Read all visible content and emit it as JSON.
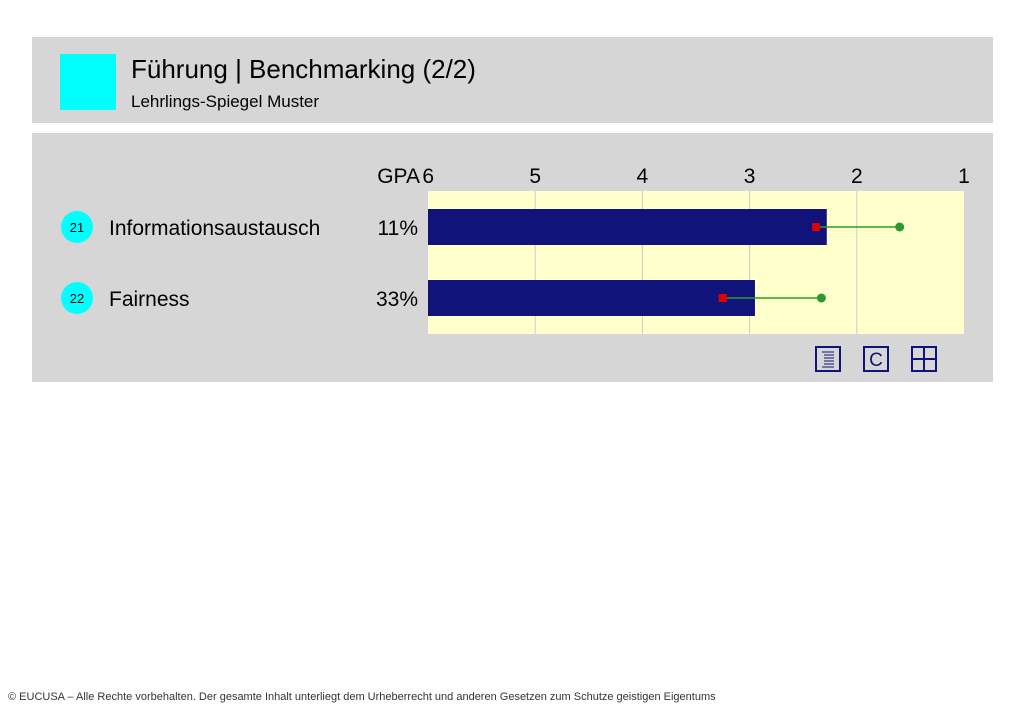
{
  "header": {
    "title": "Führung | Benchmarking (2/2)",
    "subtitle": "Lehrlings-Spiegel Muster",
    "accent_color": "#00ffff"
  },
  "chart_data": {
    "type": "bar",
    "orientation": "horizontal",
    "axis": {
      "prefix": "GPA",
      "ticks": [
        "6",
        "5",
        "4",
        "3",
        "2",
        "1"
      ],
      "range": [
        6,
        1
      ],
      "reversed": true
    },
    "grid": true,
    "plot_background": "#ffffcc",
    "bar_color": "#12137a",
    "marker_colors": {
      "red": "#e00000",
      "green": "#2e9a2e"
    },
    "rows": [
      {
        "number": "21",
        "label": "Informationsaustausch",
        "percent": "11%",
        "value": 2.28,
        "red_marker": 2.38,
        "green_marker": 1.6
      },
      {
        "number": "22",
        "label": "Fairness",
        "percent": "33%",
        "value": 2.95,
        "red_marker": 3.25,
        "green_marker": 2.33
      }
    ]
  },
  "toolbar": {
    "icons": [
      "list-icon",
      "c-icon",
      "grid-icon"
    ],
    "c_label": "C"
  },
  "footer": {
    "text": "© EUCUSA – Alle Rechte vorbehalten. Der gesamte Inhalt unterliegt dem Urheberrecht und anderen Gesetzen zum Schutze geistigen Eigentums"
  }
}
